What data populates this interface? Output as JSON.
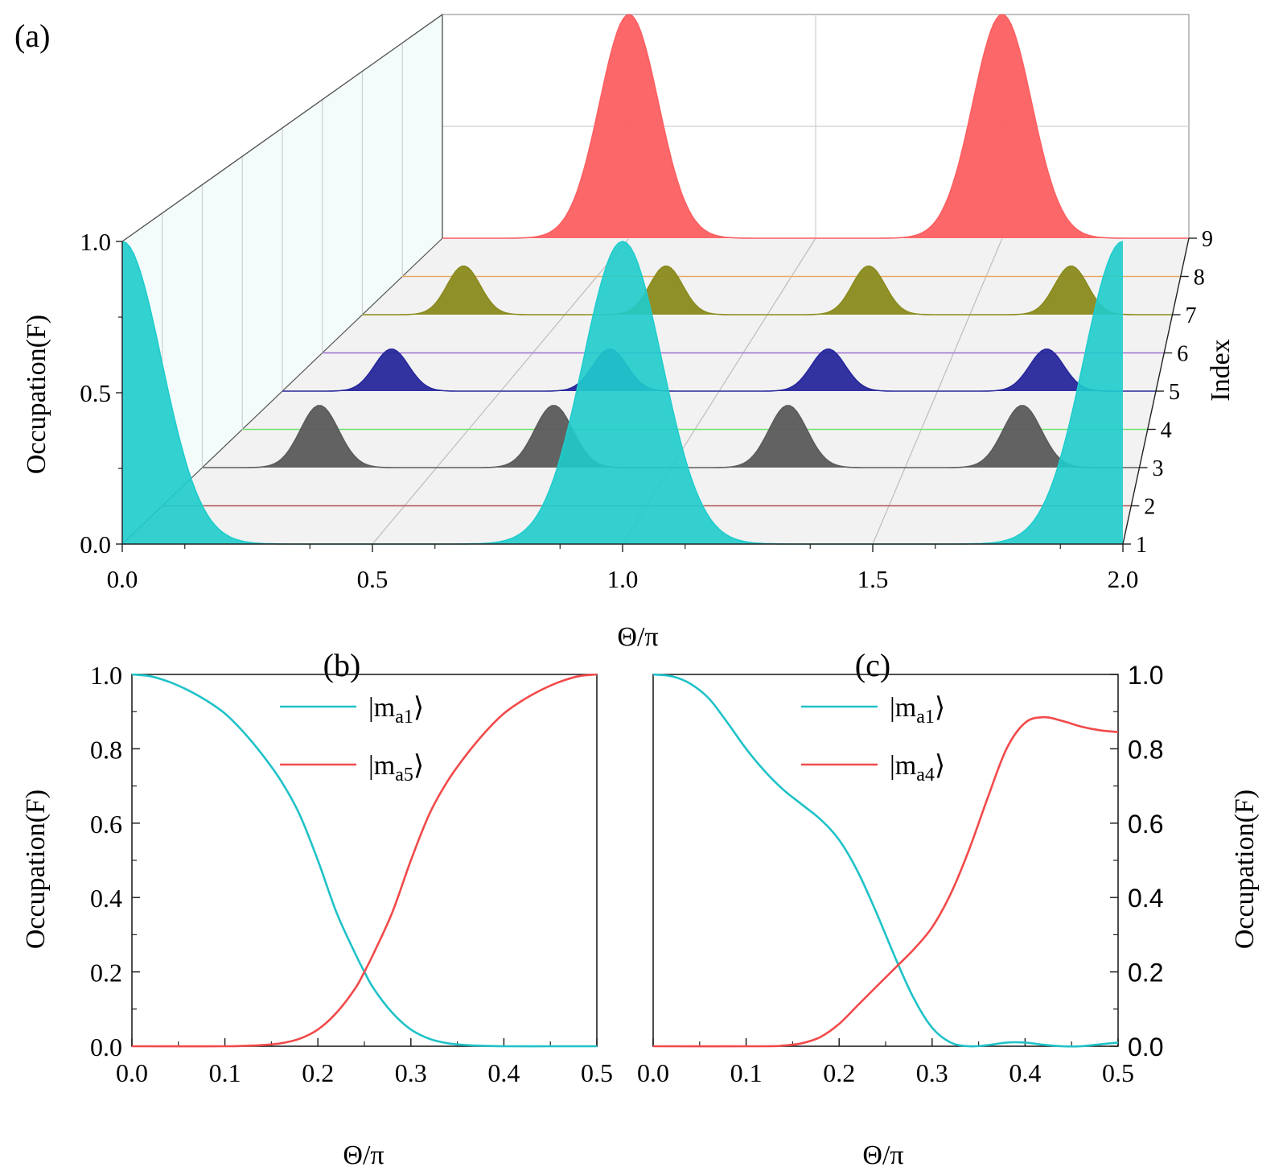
{
  "figure": {
    "panels": [
      "(a)",
      "(b)",
      "(c)"
    ]
  },
  "chart_data": [
    {
      "panel": "(a)",
      "type": "area",
      "xlabel": "Θ/π",
      "ylabel": "Occupation(F)",
      "zlabel": "Index",
      "xlim": [
        0.0,
        2.0
      ],
      "ylim": [
        0.0,
        1.0
      ],
      "xticks": [
        "0.0",
        "0.5",
        "1.0",
        "1.5",
        "2.0"
      ],
      "yticks": [
        "0.0",
        "0.5",
        "1.0"
      ],
      "index_ticks": [
        "1",
        "2",
        "3",
        "4",
        "5",
        "6",
        "7",
        "8",
        "9"
      ],
      "grid": true,
      "series": [
        {
          "index": 9,
          "color": "#fc5f61",
          "peak": 1.0,
          "width": 0.145,
          "centers": [
            0.5,
            1.5
          ],
          "offset": 0.0
        },
        {
          "index": 8,
          "color": "#e8a860",
          "peak": 0.0,
          "width": 0.1,
          "centers": [],
          "offset": 0.0
        },
        {
          "index": 7,
          "color": "#8a8a1e",
          "peak": 0.2,
          "width": 0.075,
          "centers": [
            0.25,
            0.75,
            1.25,
            1.75
          ],
          "offset": 0.0
        },
        {
          "index": 6,
          "color": "#9a6bd0",
          "peak": 0.0,
          "width": 0.1,
          "centers": [],
          "offset": 0.0
        },
        {
          "index": 5,
          "color": "#27279b",
          "peak": 0.16,
          "width": 0.072,
          "centers": [
            0.25,
            0.75,
            1.25,
            1.75
          ],
          "offset": 0.0
        },
        {
          "index": 4,
          "color": "#6ee06e",
          "peak": 0.0,
          "width": 0.1,
          "centers": [],
          "offset": 0.0
        },
        {
          "index": 3,
          "color": "#5a5a5a",
          "peak": 0.22,
          "width": 0.075,
          "centers": [
            0.25,
            0.75,
            1.25,
            1.75
          ],
          "offset": 0.0
        },
        {
          "index": 2,
          "color": "#b05050",
          "peak": 0.0,
          "width": 0.1,
          "centers": [],
          "offset": 0.0
        },
        {
          "index": 1,
          "color": "#1fcccc",
          "peak": 1.0,
          "width": 0.145,
          "centers": [
            0.0,
            1.0,
            2.0
          ],
          "offset": 0.0
        }
      ]
    },
    {
      "panel": "(b)",
      "type": "line",
      "xlabel": "Θ/π",
      "ylabel": "Occupation(F)",
      "xlim": [
        0.0,
        0.5
      ],
      "ylim": [
        0.0,
        1.0
      ],
      "xticks": [
        "0.0",
        "0.1",
        "0.2",
        "0.3",
        "0.4",
        "0.5"
      ],
      "yticks": [
        "0.0",
        "0.2",
        "0.4",
        "0.6",
        "0.8",
        "1.0"
      ],
      "legend": "top-center",
      "series": [
        {
          "name": "|m",
          "sub": "a1",
          "color": "#1fc2c8",
          "x": [
            0.0,
            0.02,
            0.04,
            0.06,
            0.08,
            0.1,
            0.12,
            0.14,
            0.16,
            0.18,
            0.2,
            0.22,
            0.24,
            0.25,
            0.26,
            0.28,
            0.3,
            0.32,
            0.34,
            0.36,
            0.38,
            0.4,
            0.45,
            0.5
          ],
          "y": [
            1.0,
            0.995,
            0.98,
            0.958,
            0.93,
            0.895,
            0.845,
            0.785,
            0.715,
            0.625,
            0.5,
            0.36,
            0.25,
            0.2,
            0.155,
            0.09,
            0.045,
            0.02,
            0.008,
            0.003,
            0.001,
            0.0,
            0.0,
            0.0
          ]
        },
        {
          "name": "|m",
          "sub": "a5",
          "color": "#f24a4a",
          "x": [
            0.0,
            0.1,
            0.12,
            0.14,
            0.16,
            0.18,
            0.2,
            0.22,
            0.24,
            0.25,
            0.26,
            0.28,
            0.3,
            0.32,
            0.34,
            0.36,
            0.38,
            0.4,
            0.42,
            0.44,
            0.46,
            0.48,
            0.5
          ],
          "y": [
            0.0,
            0.0,
            0.001,
            0.003,
            0.008,
            0.02,
            0.045,
            0.09,
            0.155,
            0.2,
            0.25,
            0.36,
            0.5,
            0.625,
            0.715,
            0.785,
            0.845,
            0.895,
            0.93,
            0.958,
            0.98,
            0.995,
            1.0
          ]
        }
      ]
    },
    {
      "panel": "(c)",
      "type": "line",
      "xlabel": "Θ/π",
      "ylabel": "Occupation(F)",
      "xlim": [
        0.0,
        0.5
      ],
      "ylim": [
        0.0,
        1.0
      ],
      "xticks": [
        "0.0",
        "0.1",
        "0.2",
        "0.3",
        "0.4",
        "0.5"
      ],
      "yticks": [
        "0.0",
        "0.2",
        "0.4",
        "0.6",
        "0.8",
        "1.0"
      ],
      "legend": "top-center",
      "series": [
        {
          "name": "|m",
          "sub": "a1",
          "color": "#1fc2c8",
          "x": [
            0.0,
            0.02,
            0.04,
            0.06,
            0.08,
            0.1,
            0.12,
            0.14,
            0.16,
            0.18,
            0.2,
            0.22,
            0.24,
            0.26,
            0.28,
            0.3,
            0.32,
            0.34,
            0.36,
            0.38,
            0.4,
            0.42,
            0.44,
            0.46,
            0.48,
            0.5
          ],
          "y": [
            1.0,
            0.995,
            0.975,
            0.935,
            0.87,
            0.8,
            0.74,
            0.69,
            0.65,
            0.61,
            0.555,
            0.47,
            0.36,
            0.24,
            0.13,
            0.05,
            0.01,
            0.0,
            0.003,
            0.01,
            0.01,
            0.004,
            0.0,
            0.0,
            0.005,
            0.01
          ]
        },
        {
          "name": "|m",
          "sub": "a4",
          "color": "#f24a4a",
          "x": [
            0.0,
            0.12,
            0.14,
            0.16,
            0.18,
            0.2,
            0.22,
            0.24,
            0.26,
            0.28,
            0.3,
            0.32,
            0.34,
            0.36,
            0.38,
            0.4,
            0.42,
            0.44,
            0.46,
            0.48,
            0.5
          ],
          "y": [
            0.0,
            0.0,
            0.002,
            0.008,
            0.025,
            0.06,
            0.11,
            0.16,
            0.21,
            0.26,
            0.32,
            0.41,
            0.53,
            0.67,
            0.8,
            0.87,
            0.885,
            0.875,
            0.86,
            0.85,
            0.845
          ]
        }
      ]
    }
  ]
}
